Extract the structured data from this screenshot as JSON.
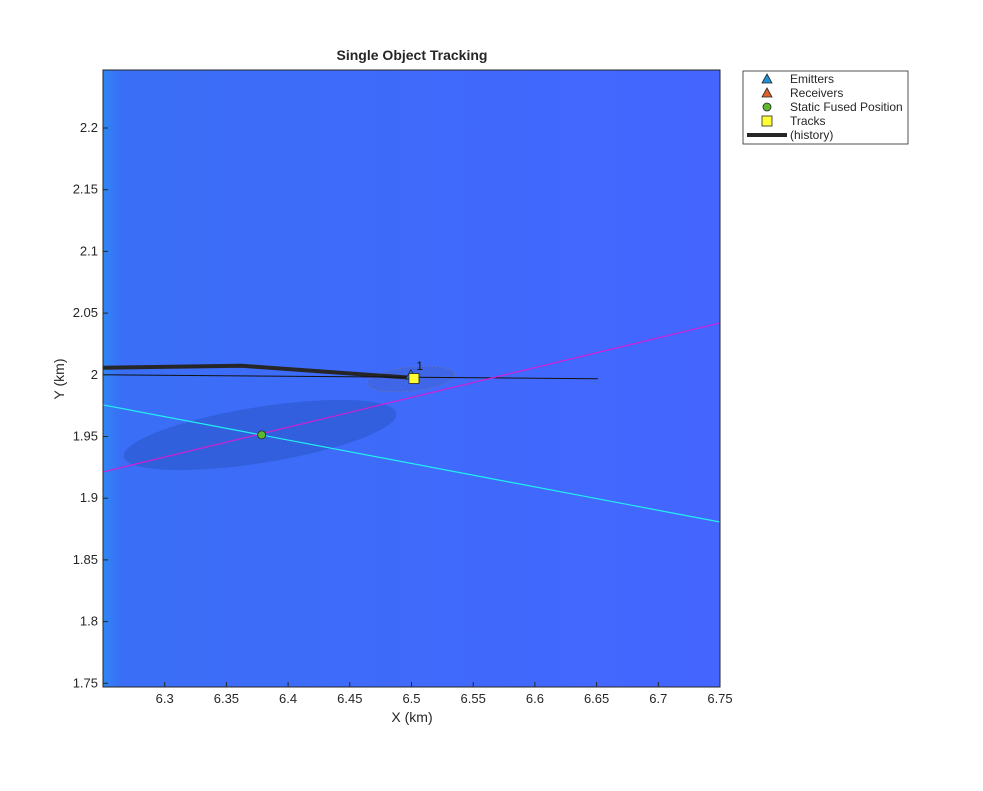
{
  "chart_data": {
    "type": "line",
    "title": "Single Object Tracking",
    "xlabel": "X (km)",
    "ylabel": "Y (km)",
    "xlim": [
      6.25,
      6.75
    ],
    "ylim": [
      1.747,
      2.247
    ],
    "xticks": [
      6.3,
      6.35,
      6.4,
      6.45,
      6.5,
      6.55,
      6.6,
      6.65,
      6.7,
      6.75
    ],
    "yticks": [
      1.75,
      1.8,
      1.85,
      1.9,
      1.95,
      2,
      2.05,
      2.1,
      2.15,
      2.2
    ],
    "legend": "northeastoutside",
    "series": [
      {
        "name": "Emitters",
        "marker": "triangle",
        "color": "#1f8fd6",
        "x": [
          6.4995
        ],
        "values": [
          2.0
        ]
      },
      {
        "name": "Receivers",
        "marker": "triangle",
        "color": "#e0602a",
        "x": [],
        "values": []
      },
      {
        "name": "Static Fused Position",
        "marker": "circle",
        "color": "#5cb82e",
        "x": [
          6.3786
        ],
        "values": [
          1.9513
        ]
      },
      {
        "name": "Tracks",
        "marker": "square",
        "color": "#ffff33",
        "x": [
          6.502
        ],
        "values": [
          1.997
        ]
      },
      {
        "name": "(history)",
        "marker": "line",
        "color": "#262626",
        "width": 4,
        "x": [
          6.25,
          6.3623,
          6.4998
        ],
        "values": [
          2.0057,
          2.0073,
          1.9976
        ]
      },
      {
        "marker": "line",
        "color": "#111111",
        "width": 1,
        "x": [
          6.25,
          6.651
        ],
        "values": [
          2.0,
          1.9968
        ]
      },
      {
        "marker": "line",
        "color": "#d21fd2",
        "width": 1.2,
        "x": [
          6.25,
          6.75
        ],
        "values": [
          1.9213,
          2.042
        ]
      },
      {
        "marker": "line",
        "color": "#22f0f0",
        "width": 1.2,
        "x": [
          6.25,
          6.75
        ],
        "values": [
          1.9756,
          1.8807
        ]
      }
    ],
    "annotations": [
      {
        "text": "1",
        "x": 6.504,
        "y": 2.004
      }
    ]
  }
}
